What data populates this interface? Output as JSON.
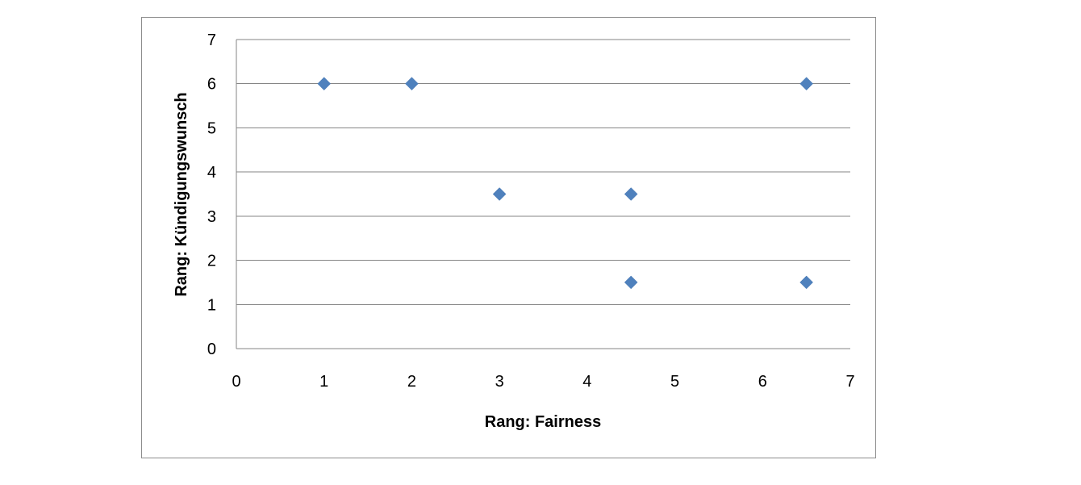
{
  "chart_data": {
    "type": "scatter",
    "title": "",
    "xlabel": "Rang: Fairness",
    "ylabel": "Rang: Kündigungswunsch",
    "xlim": [
      0,
      7
    ],
    "ylim": [
      0,
      7
    ],
    "x_ticks": [
      "0",
      "1",
      "2",
      "3",
      "4",
      "5",
      "6",
      "7"
    ],
    "y_ticks": [
      "0",
      "1",
      "2",
      "3",
      "4",
      "5",
      "6",
      "7"
    ],
    "grid": "horizontal",
    "legend": "none",
    "marker": "diamond",
    "colors": {
      "marker": "#4f81bd",
      "grid": "#868686",
      "frame": "#8c8c8c"
    },
    "series": [
      {
        "x": [
          1,
          2,
          3,
          4.5,
          4.5,
          6.5,
          6.5
        ],
        "y": [
          6,
          6,
          3.5,
          3.5,
          1.5,
          6,
          1.5
        ]
      }
    ]
  }
}
